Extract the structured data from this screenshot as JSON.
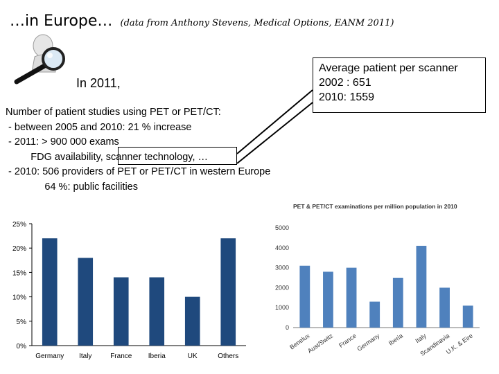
{
  "title": {
    "main": "…in Europe…",
    "source": "(data from Anthony Stevens, Medical Options, EANM 2011)"
  },
  "intro": "In 2011,",
  "lines": [
    "Number of patient studies using PET or PET/CT:",
    " - between 2005 and 2010: 21 % increase",
    " - 2011: > 900 000 exams",
    "         FDG availability, scanner technology, …",
    " - 2010: 506 providers of PET or PET/CT in western Europe",
    "              64 %: public facilities"
  ],
  "callout": {
    "line1": "Average patient per scanner",
    "line2": "2002 : 651",
    "line3": "2010: 1559"
  },
  "icon": "magnifying-glass-person-icon",
  "chart_data": [
    {
      "type": "bar",
      "title": "",
      "categories": [
        "Germany",
        "Italy",
        "France",
        "Iberia",
        "UK",
        "Others"
      ],
      "values": [
        22,
        18,
        14,
        14,
        10,
        22
      ],
      "ylim": [
        0,
        25
      ],
      "yticks": [
        "0%",
        "5%",
        "10%",
        "15%",
        "20%",
        "25%"
      ],
      "grid": false,
      "color": "#1f497d"
    },
    {
      "type": "bar",
      "title": "PET & PET/CT examinations per million population in 2010",
      "categories": [
        "Benelux",
        "Aust/Switz",
        "France",
        "Germany",
        "Iberia",
        "Italy",
        "Scandinavia",
        "U.K. & Eire"
      ],
      "values": [
        3100,
        2800,
        3000,
        1300,
        2500,
        4100,
        2000,
        1100
      ],
      "ylim": [
        0,
        5000
      ],
      "yticks": [
        "0",
        "1000",
        "2000",
        "3000",
        "4000",
        "5000"
      ],
      "grid": false,
      "color": "#4f81bd"
    }
  ]
}
